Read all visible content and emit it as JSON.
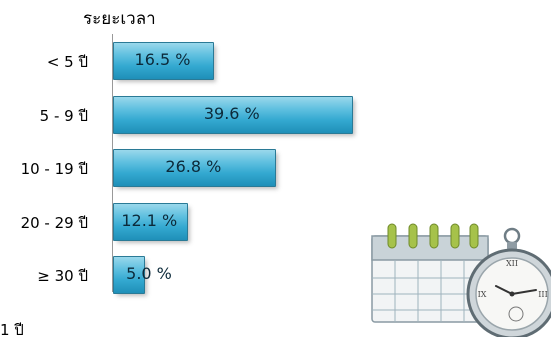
{
  "chart_data": {
    "type": "bar",
    "orientation": "horizontal",
    "title": "ระยะเวลา",
    "categories": [
      "< 5 ปี",
      "5 - 9 ปี",
      "10 - 19 ปี",
      "20 - 29 ปี",
      "≥ 30 ปี"
    ],
    "values": [
      16.5,
      39.6,
      26.8,
      12.1,
      5.0
    ],
    "value_labels": [
      "16.5 %",
      "39.6 %",
      "26.8 %",
      "12.1 %",
      "5.0 %"
    ],
    "unit": "%",
    "xlim": [
      0,
      55
    ],
    "grid": false,
    "legend": "none",
    "bar_color": "#33a8d0"
  },
  "footer_text": "1              ปี",
  "illustration": {
    "calendar_icon": "calendar-icon",
    "clock_icon": "pocket-watch-icon"
  }
}
